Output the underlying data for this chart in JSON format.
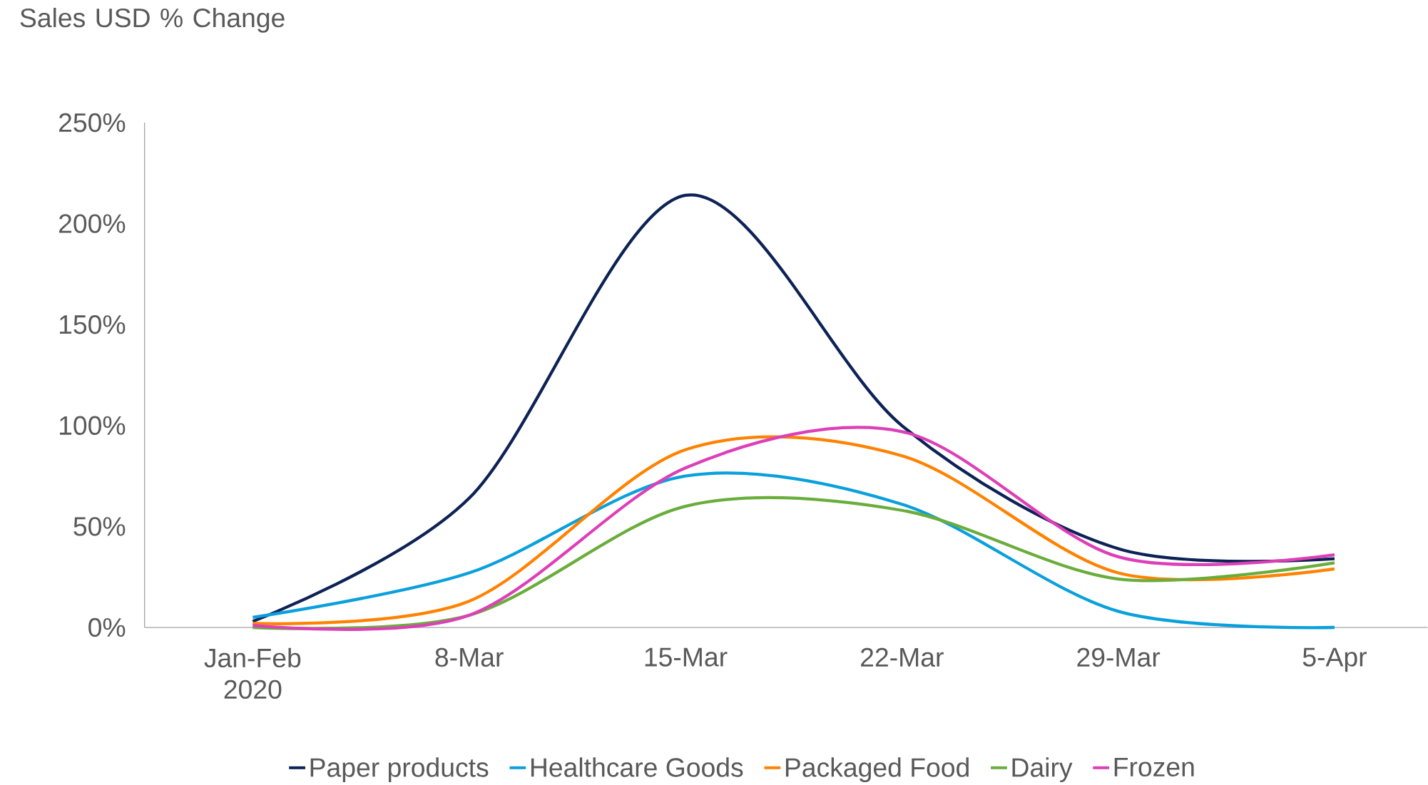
{
  "chart_data": {
    "type": "line",
    "ylabel": "Sales USD % Change",
    "categories": [
      "Jan-Feb 2020",
      "8-Mar",
      "15-Mar",
      "22-Mar",
      "29-Mar",
      "5-Apr"
    ],
    "series": [
      {
        "name": "Paper products",
        "color": "#0d2255",
        "values": [
          3,
          64,
          214,
          100,
          39,
          34
        ]
      },
      {
        "name": "Healthcare Goods",
        "color": "#0aa0dc",
        "values": [
          5,
          27,
          75,
          61,
          8,
          0
        ]
      },
      {
        "name": "Packaged Food",
        "color": "#ff8200",
        "values": [
          2,
          13,
          88,
          85,
          27,
          29
        ]
      },
      {
        "name": "Dairy",
        "color": "#6aad3c",
        "values": [
          0,
          6,
          60,
          58,
          24,
          32
        ]
      },
      {
        "name": "Frozen",
        "color": "#dd3fb7",
        "values": [
          1,
          6,
          79,
          97,
          35,
          36
        ]
      }
    ],
    "ylim": [
      0,
      250
    ],
    "yticks": [
      {
        "value": 0,
        "label": "0%"
      },
      {
        "value": 50,
        "label": "50%"
      },
      {
        "value": 100,
        "label": "100%"
      },
      {
        "value": 150,
        "label": "150%"
      },
      {
        "value": 200,
        "label": "200%"
      },
      {
        "value": 250,
        "label": "250%"
      }
    ],
    "legend": "bottom",
    "grid": false,
    "marker": "none",
    "line_style": "solid"
  }
}
